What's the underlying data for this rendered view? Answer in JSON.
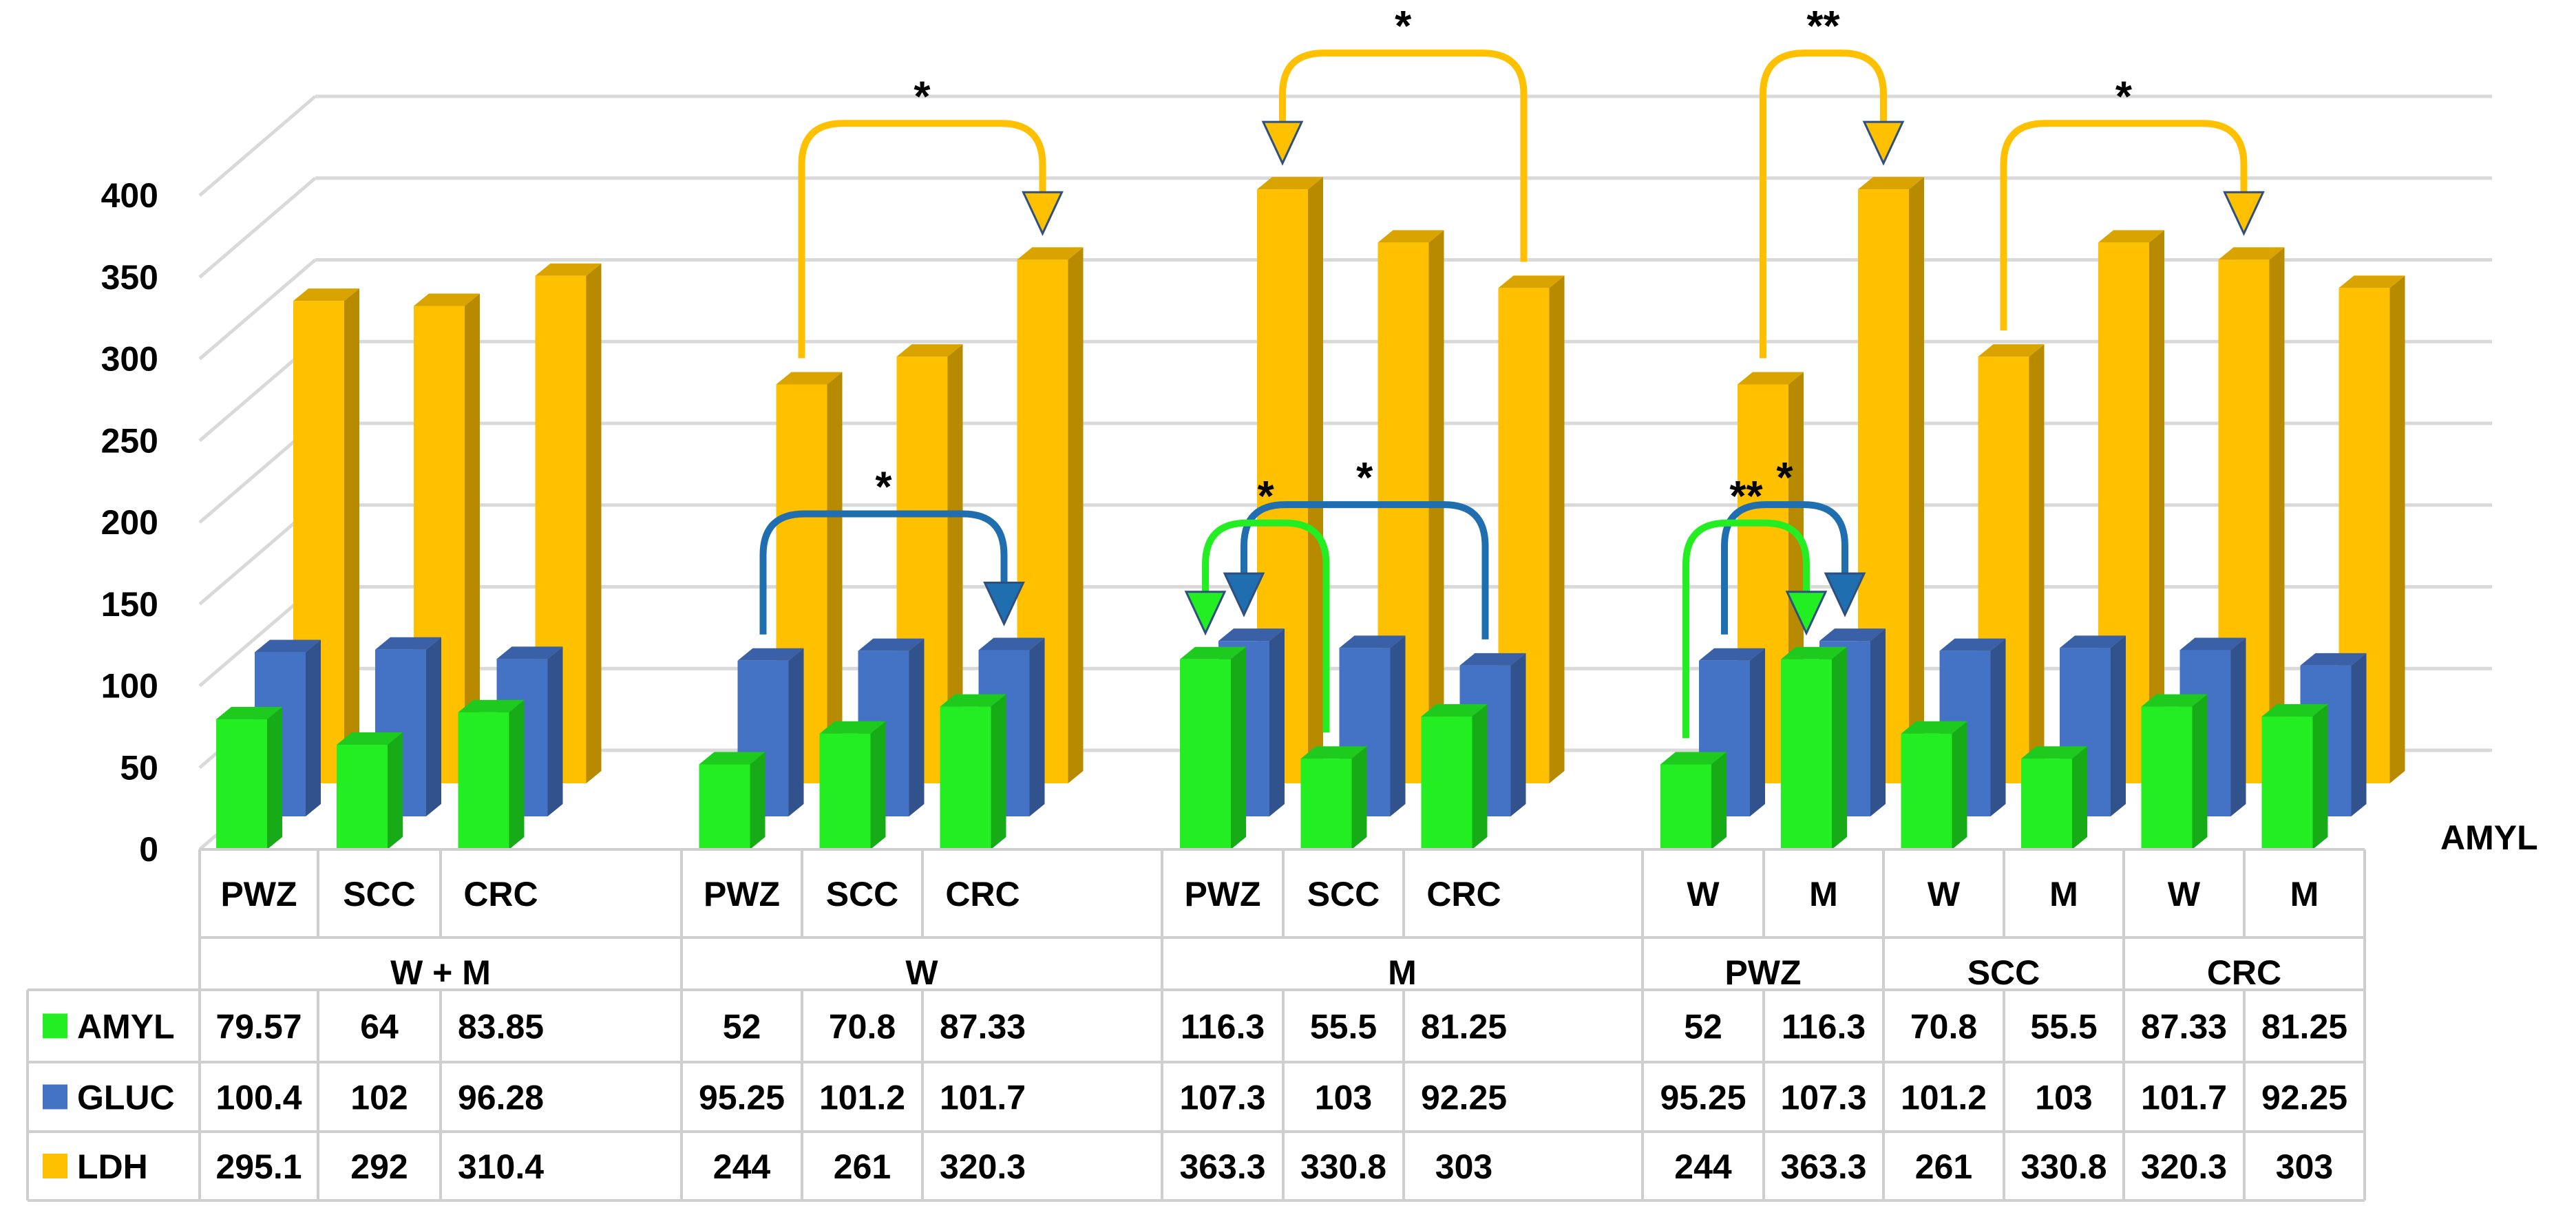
{
  "chart_data": {
    "type": "bar",
    "title": "",
    "subtitle": "",
    "xlabel": "",
    "ylabel": "",
    "y_ticks": [
      "0",
      "50",
      "100",
      "150",
      "200",
      "250",
      "300",
      "350",
      "400"
    ],
    "ylim": [
      0,
      400
    ],
    "grid": true,
    "depth_label": "AMYL",
    "groups": [
      {
        "label": "W + M",
        "categories": [
          "PWZ",
          "SCC",
          "CRC"
        ]
      },
      {
        "label": "W",
        "categories": [
          "PWZ",
          "SCC",
          "CRC"
        ]
      },
      {
        "label": "M",
        "categories": [
          "PWZ",
          "SCC",
          "CRC"
        ]
      },
      {
        "label": "PWZ",
        "categories": [
          "W",
          "M"
        ]
      },
      {
        "label": "SCC",
        "categories": [
          "W",
          "M"
        ]
      },
      {
        "label": "CRC",
        "categories": [
          "W",
          "M"
        ]
      }
    ],
    "series": [
      {
        "name": "AMYL",
        "color": "#22ee22",
        "labels": [
          "79.57",
          "64",
          "83.85",
          "52",
          "70.8",
          "87.33",
          "116.3",
          "55.5",
          "81.25",
          "52",
          "116.3",
          "70.8",
          "55.5",
          "87.33",
          "81.25"
        ],
        "values": [
          79.57,
          64,
          83.85,
          52,
          70.8,
          87.33,
          116.3,
          55.5,
          81.25,
          52,
          116.3,
          70.8,
          55.5,
          87.33,
          81.25
        ]
      },
      {
        "name": "GLUC",
        "color": "#4472c4",
        "labels": [
          "100.4",
          "102",
          "96.28",
          "95.25",
          "101.2",
          "101.7",
          "107.3",
          "103",
          "92.25",
          "95.25",
          "107.3",
          "101.2",
          "103",
          "101.7",
          "92.25"
        ],
        "values": [
          100.4,
          102,
          96.28,
          95.25,
          101.2,
          101.7,
          107.3,
          103,
          92.25,
          95.25,
          107.3,
          101.2,
          103,
          101.7,
          92.25
        ]
      },
      {
        "name": "LDH",
        "color": "#ffc000",
        "labels": [
          "295.1",
          "292",
          "310.4",
          "244",
          "261",
          "320.3",
          "363.3",
          "330.8",
          "303",
          "244",
          "363.3",
          "261",
          "330.8",
          "320.3",
          "303"
        ],
        "values": [
          295.1,
          292,
          310.4,
          244,
          261,
          320.3,
          363.3,
          330.8,
          303,
          244,
          363.3,
          261,
          330.8,
          320.3,
          303
        ]
      }
    ],
    "annotations": [
      {
        "series": "LDH",
        "from": 3,
        "to": 5,
        "label": "*",
        "color": "#ffc000"
      },
      {
        "series": "GLUC",
        "from": 3,
        "to": 5,
        "label": "*",
        "color": "#1f6fb0"
      },
      {
        "series": "LDH",
        "from": 8,
        "to": 6,
        "label": "*",
        "color": "#ffc000"
      },
      {
        "series": "GLUC",
        "from": 8,
        "to": 6,
        "label": "*",
        "color": "#1f6fb0"
      },
      {
        "series": "AMYL",
        "from": 7,
        "to": 6,
        "label": "*",
        "color": "#22ee22"
      },
      {
        "series": "LDH",
        "from": 9,
        "to": 10,
        "label": "**",
        "color": "#ffc000"
      },
      {
        "series": "GLUC",
        "from": 9,
        "to": 10,
        "label": "*",
        "color": "#1f6fb0"
      },
      {
        "series": "AMYL",
        "from": 9,
        "to": 10,
        "label": "**",
        "color": "#22ee22"
      },
      {
        "series": "LDH",
        "from": 11,
        "to": 13,
        "label": "*",
        "color": "#ffc000"
      }
    ]
  }
}
